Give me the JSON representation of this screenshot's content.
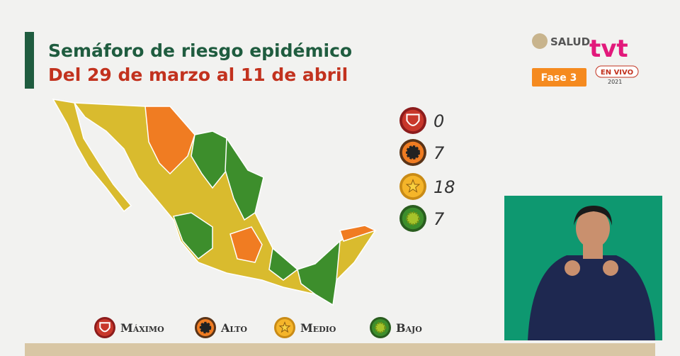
{
  "header": {
    "title": "Semáforo de riesgo epidémico",
    "subtitle": "Del 29 de marzo al 11 de abril"
  },
  "logos": {
    "agency": "SALUD",
    "channel": "tvt",
    "live": "EN VIVO",
    "year": "2021"
  },
  "badge": "Fase 3",
  "counts": [
    {
      "level": "Máximo",
      "count": "0"
    },
    {
      "level": "Alto",
      "count": "7"
    },
    {
      "level": "Medio",
      "count": "18"
    },
    {
      "level": "Bajo",
      "count": "7"
    }
  ]
}
